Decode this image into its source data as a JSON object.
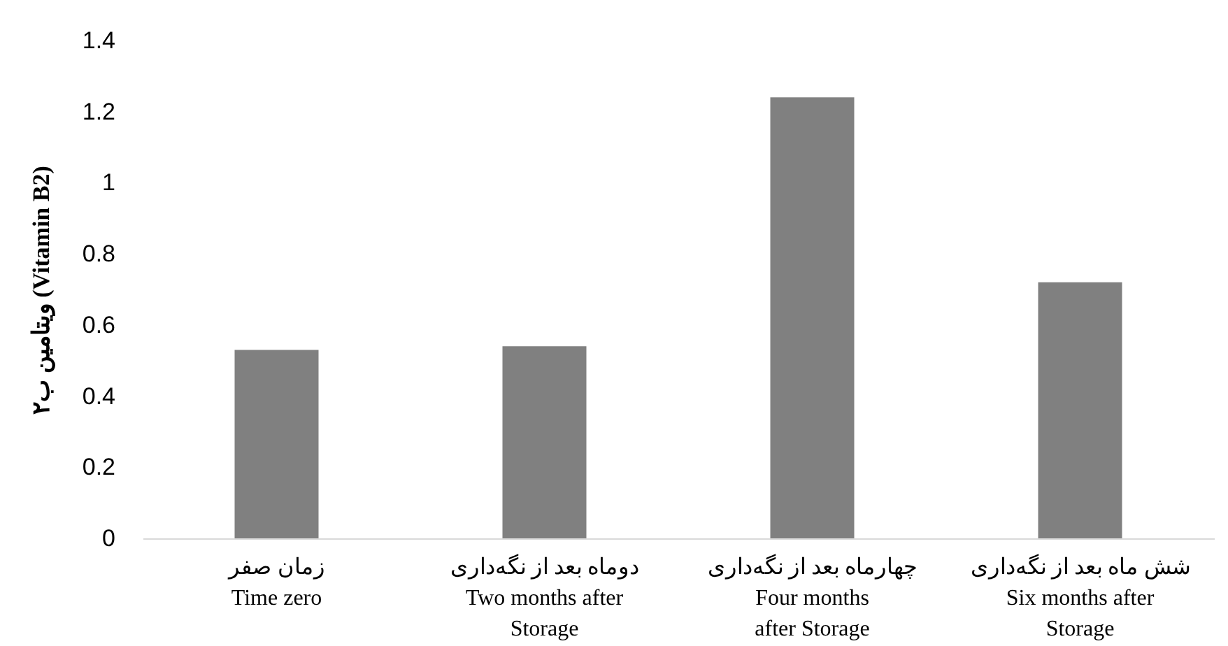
{
  "chart_data": {
    "type": "bar",
    "ylabel": "ویتامین ب۲ (Vitamin B2)",
    "categories": [
      "زمان صفر\nTime zero",
      "دوماه بعد از نگه‌داری\nTwo months after\nStorage",
      "چهارماه بعد از نگه‌داری\nFour months\nafter Storage",
      "شش ماه بعد از نگه‌داری\nSix months after\nStorage"
    ],
    "values": [
      0.53,
      0.54,
      1.24,
      0.72
    ],
    "color": "#808080",
    "ylim": [
      0,
      1.4
    ],
    "yticks": [
      0,
      0.2,
      0.4,
      0.6,
      0.8,
      1,
      1.2,
      1.4
    ],
    "grid": false
  }
}
